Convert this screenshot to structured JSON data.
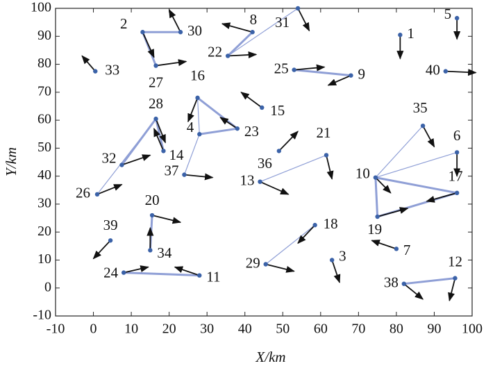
{
  "chart_data": {
    "type": "scatter",
    "xlabel": "X/km",
    "ylabel": "Y/km",
    "xlim": [
      -10,
      100
    ],
    "ylim": [
      -10,
      100
    ],
    "xticks": [
      -10,
      0,
      10,
      20,
      30,
      40,
      50,
      60,
      70,
      80,
      90,
      100
    ],
    "yticks": [
      -10,
      0,
      10,
      20,
      30,
      40,
      50,
      60,
      70,
      80,
      90,
      100
    ],
    "labels": [
      1,
      2,
      3,
      4,
      5,
      6,
      7,
      8,
      9,
      10,
      11,
      12,
      13,
      14,
      15,
      16,
      17,
      18,
      19,
      20,
      21,
      22,
      23,
      24,
      25,
      26,
      27,
      28,
      29,
      30,
      31,
      32,
      33,
      34,
      35,
      36,
      37,
      38,
      39,
      40
    ],
    "x": [
      81,
      13,
      63,
      28,
      96,
      96,
      80,
      42,
      68,
      74.5,
      28,
      95.5,
      44,
      18.5,
      44.5,
      27.5,
      96,
      58.5,
      75,
      15.5,
      61.5,
      35.5,
      38,
      8,
      53,
      1,
      16.5,
      16.5,
      45.5,
      23,
      54,
      7.5,
      0.5,
      15,
      87,
      49,
      24,
      82,
      4.5,
      93
    ],
    "y": [
      90.5,
      91.5,
      10,
      55,
      96.5,
      48.5,
      14,
      91.5,
      76,
      39.5,
      4.5,
      3.5,
      38,
      49,
      64.5,
      68,
      34,
      22.5,
      25.5,
      26,
      47.5,
      83,
      57,
      5.5,
      78,
      33.5,
      79.5,
      60.5,
      8.5,
      91.5,
      100,
      44,
      77.5,
      13.5,
      58,
      49,
      40.5,
      1.5,
      17,
      77.5
    ],
    "dx": [
      0,
      3,
      2,
      null,
      0,
      0,
      -6.5,
      -8,
      -6,
      4,
      -6.5,
      -1.5,
      7.5,
      -2.5,
      -5.5,
      -2.5,
      -8,
      -4.5,
      8,
      7.5,
      1.5,
      7.5,
      -4.5,
      6.5,
      8,
      6.5,
      8,
      2.5,
      7.5,
      -3,
      3,
      7.5,
      -3.5,
      0,
      3,
      5,
      7.5,
      5,
      -4.5,
      8
    ],
    "dy": [
      -8.5,
      -9,
      -8,
      null,
      -7.5,
      -8.5,
      3,
      3,
      -3.5,
      -5.5,
      3,
      -8,
      -4.5,
      8,
      5.5,
      -8.5,
      -3,
      -6.5,
      3,
      -2.5,
      -8.5,
      0.5,
      4,
      2,
      1,
      3.5,
      1.5,
      -8.5,
      -2.5,
      8,
      -8,
      3.5,
      5.5,
      8,
      -7.5,
      7,
      -1,
      -5.5,
      -6.5,
      -0.5
    ],
    "links_thick": [
      [
        2,
        30
      ],
      [
        2,
        27
      ],
      [
        8,
        22
      ],
      [
        25,
        9
      ],
      [
        16,
        23
      ],
      [
        4,
        23
      ],
      [
        28,
        14
      ],
      [
        28,
        32
      ],
      [
        20,
        34
      ],
      [
        24,
        11
      ],
      [
        10,
        17
      ],
      [
        10,
        19
      ],
      [
        19,
        17
      ],
      [
        38,
        12
      ]
    ],
    "links_thin": [
      [
        22,
        31
      ],
      [
        26,
        28
      ],
      [
        4,
        37
      ],
      [
        16,
        4
      ],
      [
        10,
        35
      ],
      [
        10,
        6
      ],
      [
        13,
        21
      ],
      [
        29,
        18
      ]
    ],
    "point_color": "#3b62a8",
    "link_color": "#8f9fd6",
    "arrow_color": "#111"
  }
}
